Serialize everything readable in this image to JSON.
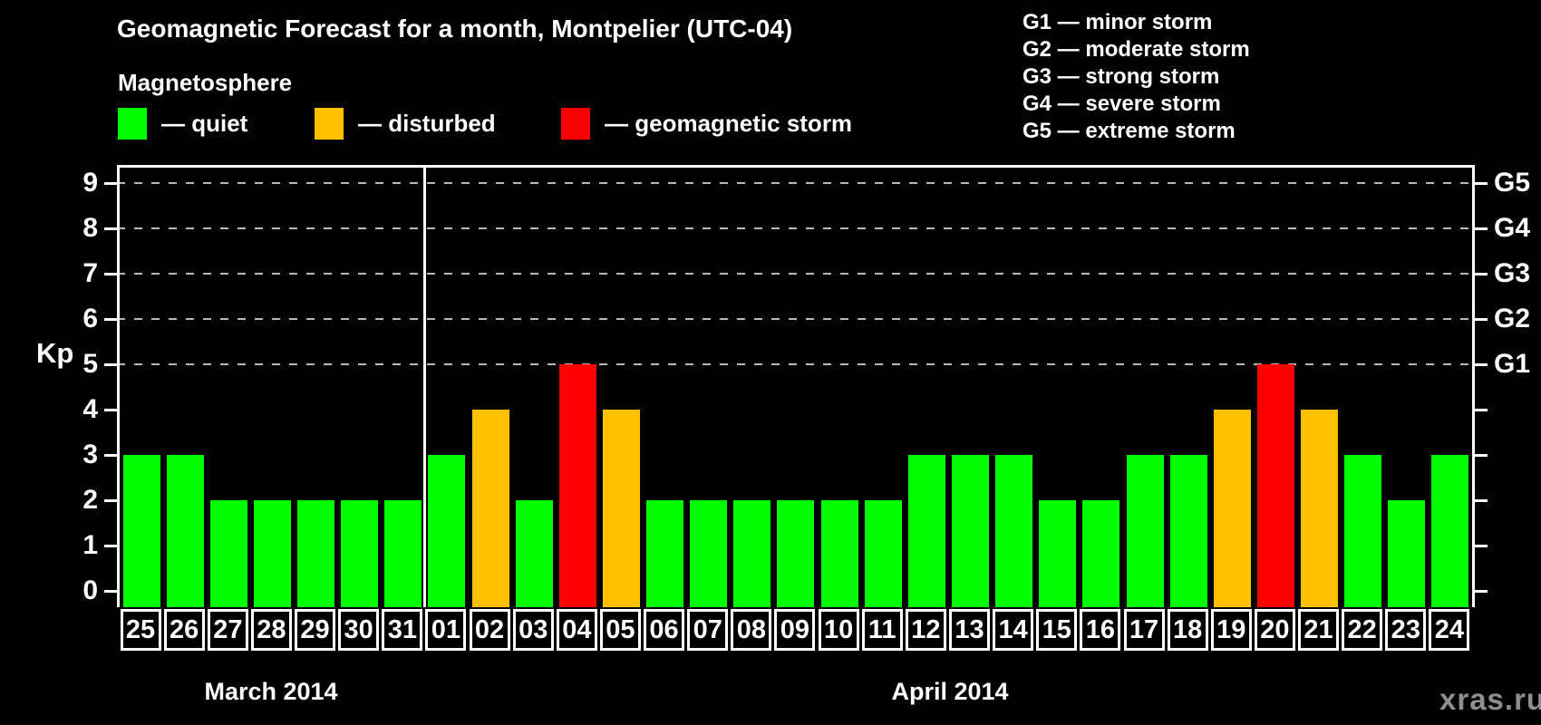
{
  "title": "Geomagnetic Forecast for a month, Montpelier (UTC-04)",
  "magnetosphere_heading": "Magnetosphere",
  "legend": {
    "items": [
      {
        "key": "quiet",
        "label": "— quiet",
        "color": "#00ff00"
      },
      {
        "key": "disturbed",
        "label": "— disturbed",
        "color": "#ffc000"
      },
      {
        "key": "storm",
        "label": "— geomagnetic storm",
        "color": "#ff0000"
      }
    ]
  },
  "storm_scale": [
    "G1 — minor storm",
    "G2 — moderate storm",
    "G3 — strong storm",
    "G4 — severe storm",
    "G5 — extreme storm"
  ],
  "kp_axis_label": "Kp",
  "month_labels": {
    "march": "March 2014",
    "april": "April 2014"
  },
  "watermark": "xras.ru",
  "chart_data": {
    "type": "bar",
    "title": "Geomagnetic Forecast for a month, Montpelier (UTC-04)",
    "ylabel": "Kp",
    "ylim": [
      0,
      9
    ],
    "yticks": [
      0,
      1,
      2,
      3,
      4,
      5,
      6,
      7,
      8,
      9
    ],
    "gridlines_at_kp": [
      5,
      6,
      7,
      8,
      9
    ],
    "grid_style": "dashed horizontal lines at storm levels G1–G5 only",
    "legend_position": "top-left",
    "right_axis_labels": [
      {
        "kp": 5,
        "label": "G1"
      },
      {
        "kp": 6,
        "label": "G2"
      },
      {
        "kp": 7,
        "label": "G3"
      },
      {
        "kp": 8,
        "label": "G4"
      },
      {
        "kp": 9,
        "label": "G5"
      }
    ],
    "months": [
      {
        "label": "March 2014",
        "day_count": 7
      },
      {
        "label": "April 2014",
        "day_count": 24
      }
    ],
    "categories": [
      "25",
      "26",
      "27",
      "28",
      "29",
      "30",
      "31",
      "01",
      "02",
      "03",
      "04",
      "05",
      "06",
      "07",
      "08",
      "09",
      "10",
      "11",
      "12",
      "13",
      "14",
      "15",
      "16",
      "17",
      "18",
      "19",
      "20",
      "21",
      "22",
      "23",
      "24"
    ],
    "values": [
      3,
      3,
      2,
      2,
      2,
      2,
      2,
      3,
      4,
      2,
      5,
      4,
      2,
      2,
      2,
      2,
      2,
      2,
      3,
      3,
      3,
      2,
      2,
      3,
      3,
      4,
      5,
      4,
      3,
      2,
      3
    ],
    "levels": [
      "quiet",
      "quiet",
      "quiet",
      "quiet",
      "quiet",
      "quiet",
      "quiet",
      "quiet",
      "disturbed",
      "quiet",
      "storm",
      "disturbed",
      "quiet",
      "quiet",
      "quiet",
      "quiet",
      "quiet",
      "quiet",
      "quiet",
      "quiet",
      "quiet",
      "quiet",
      "quiet",
      "quiet",
      "quiet",
      "disturbed",
      "storm",
      "disturbed",
      "quiet",
      "quiet",
      "quiet"
    ],
    "level_colors": {
      "quiet": "#00ff00",
      "disturbed": "#ffc000",
      "storm": "#ff0000"
    }
  }
}
